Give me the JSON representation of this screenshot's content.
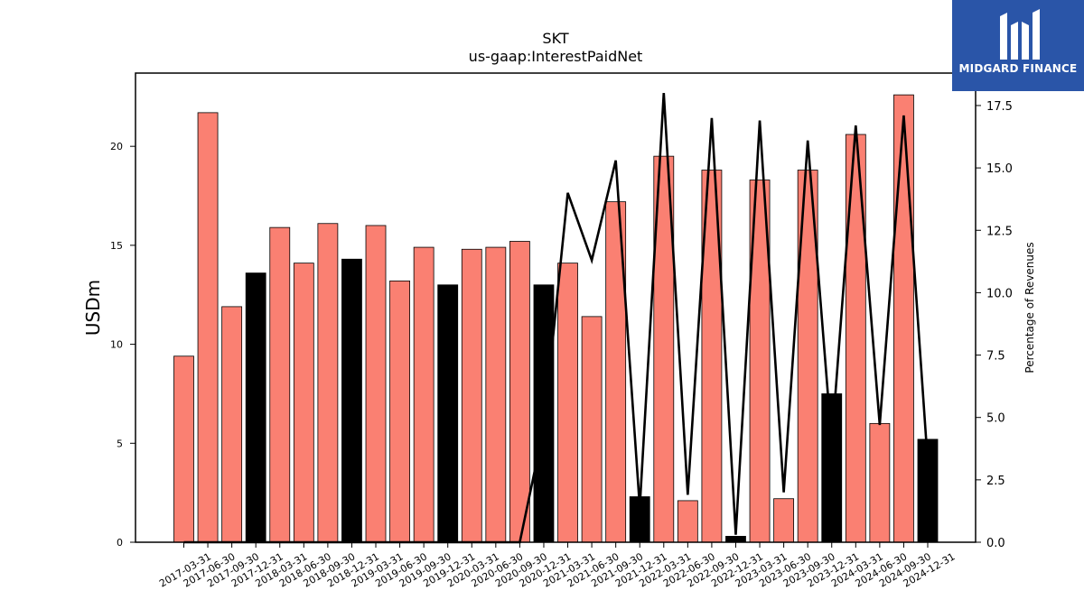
{
  "chart_data": {
    "type": "bar",
    "title": "SKT",
    "subtitle": "us-gaap:InterestPaidNet",
    "ylabel": "USDm",
    "ylabel_right": "Percentage of Revenues",
    "ylim": [
      0,
      23.7
    ],
    "ylim_right": [
      0,
      18.8
    ],
    "yticks": [
      0,
      5,
      10,
      15,
      20
    ],
    "yticks_right": [
      "0.0",
      "2.5",
      "5.0",
      "7.5",
      "10.0",
      "12.5",
      "15.0",
      "17.5"
    ],
    "grid": false,
    "colors": {
      "bar_default": "#fa8072",
      "bar_highlight": "#000000",
      "line": "#000000"
    },
    "categories": [
      "2017-03-31",
      "2017-06-30",
      "2017-09-30",
      "2017-12-31",
      "2018-03-31",
      "2018-06-30",
      "2018-09-30",
      "2018-12-31",
      "2019-03-31",
      "2019-06-30",
      "2019-09-30",
      "2019-12-31",
      "2020-03-31",
      "2020-06-30",
      "2020-09-30",
      "2020-12-31",
      "2021-03-31",
      "2021-06-30",
      "2021-09-30",
      "2021-12-31",
      "2022-03-31",
      "2022-06-30",
      "2022-09-30",
      "2022-12-31",
      "2023-03-31",
      "2023-06-30",
      "2023-09-30",
      "2023-12-31",
      "2024-03-31",
      "2024-06-30",
      "2024-09-30",
      "2024-12-31"
    ],
    "series": [
      {
        "type": "bar",
        "values": [
          9.4,
          21.7,
          11.9,
          13.6,
          15.9,
          14.1,
          16.1,
          14.3,
          16.0,
          13.2,
          14.9,
          13.0,
          14.8,
          14.9,
          15.2,
          13.0,
          14.1,
          11.4,
          17.2,
          2.3,
          19.5,
          2.1,
          18.8,
          0.3,
          18.3,
          2.2,
          18.8,
          7.5,
          20.6,
          6.0,
          22.6,
          5.2
        ],
        "highlight": [
          false,
          false,
          false,
          true,
          false,
          false,
          false,
          true,
          false,
          false,
          false,
          true,
          false,
          false,
          false,
          true,
          false,
          false,
          false,
          true,
          false,
          false,
          false,
          true,
          false,
          false,
          false,
          true,
          false,
          false,
          false,
          true
        ]
      },
      {
        "type": "line",
        "axis": "right",
        "values": [
          0,
          0,
          0,
          0,
          0,
          0,
          0,
          0,
          0,
          0,
          0,
          0,
          0,
          0,
          0,
          4.6,
          14.0,
          11.3,
          15.3,
          1.4,
          18.0,
          1.9,
          17.0,
          0.3,
          16.9,
          2.0,
          16.1,
          4.0,
          16.7,
          4.7,
          17.1,
          3.2
        ]
      }
    ]
  },
  "logo": {
    "text": "MIDGARD FINANCE"
  }
}
